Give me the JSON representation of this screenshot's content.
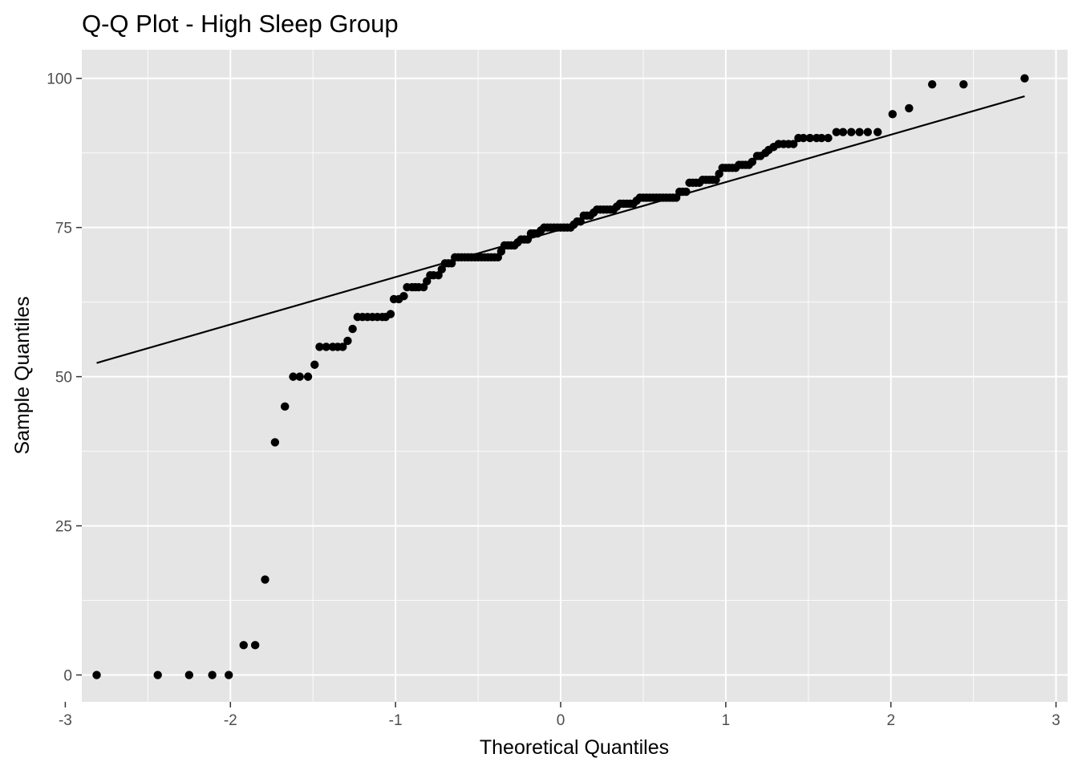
{
  "chart_data": {
    "type": "scatter",
    "title": "Q-Q Plot - High Sleep Group",
    "xlabel": "Theoretical Quantiles",
    "ylabel": "Sample Quantiles",
    "xlim": [
      -2.9,
      3.07
    ],
    "ylim": [
      -4.5,
      104.8
    ],
    "x_ticks": [
      -3,
      -2,
      -1,
      0,
      1,
      2,
      3
    ],
    "x_tick_labels": [
      "-3",
      "-2",
      "-1",
      "0",
      "1",
      "2",
      "3"
    ],
    "y_ticks": [
      0,
      25,
      50,
      75,
      100
    ],
    "y_tick_labels": [
      "0",
      "25",
      "50",
      "75",
      "100"
    ],
    "grid": true,
    "legend": "none",
    "reference_line": {
      "x": [
        -2.81,
        2.81
      ],
      "y": [
        52.3,
        97.0
      ]
    },
    "points": [
      [
        -2.81,
        0
      ],
      [
        -2.44,
        0
      ],
      [
        -2.25,
        0
      ],
      [
        -2.11,
        0
      ],
      [
        -2.01,
        0
      ],
      [
        -1.92,
        5
      ],
      [
        -1.85,
        5
      ],
      [
        -1.79,
        16
      ],
      [
        -1.73,
        39
      ],
      [
        -1.67,
        45
      ],
      [
        -1.62,
        50
      ],
      [
        -1.58,
        50
      ],
      [
        -1.53,
        50
      ],
      [
        -1.49,
        52
      ],
      [
        -1.46,
        55
      ],
      [
        -1.42,
        55
      ],
      [
        -1.38,
        55
      ],
      [
        -1.35,
        55
      ],
      [
        -1.32,
        55
      ],
      [
        -1.29,
        56
      ],
      [
        -1.26,
        58
      ],
      [
        -1.23,
        60
      ],
      [
        -1.2,
        60
      ],
      [
        -1.17,
        60
      ],
      [
        -1.14,
        60
      ],
      [
        -1.11,
        60
      ],
      [
        -1.08,
        60
      ],
      [
        -1.06,
        60
      ],
      [
        -1.03,
        60.5
      ],
      [
        -1.01,
        63
      ],
      [
        -0.98,
        63
      ],
      [
        -0.95,
        63.5
      ],
      [
        -0.93,
        65
      ],
      [
        -0.9,
        65
      ],
      [
        -0.88,
        65
      ],
      [
        -0.86,
        65
      ],
      [
        -0.83,
        65
      ],
      [
        -0.81,
        66
      ],
      [
        -0.79,
        67
      ],
      [
        -0.77,
        67
      ],
      [
        -0.74,
        67
      ],
      [
        -0.72,
        68
      ],
      [
        -0.7,
        69
      ],
      [
        -0.68,
        69
      ],
      [
        -0.66,
        69
      ],
      [
        -0.64,
        70
      ],
      [
        -0.62,
        70
      ],
      [
        -0.6,
        70
      ],
      [
        -0.58,
        70
      ],
      [
        -0.56,
        70
      ],
      [
        -0.54,
        70
      ],
      [
        -0.52,
        70
      ],
      [
        -0.5,
        70
      ],
      [
        -0.48,
        70
      ],
      [
        -0.46,
        70
      ],
      [
        -0.44,
        70
      ],
      [
        -0.42,
        70
      ],
      [
        -0.4,
        70
      ],
      [
        -0.38,
        70
      ],
      [
        -0.36,
        71
      ],
      [
        -0.34,
        72
      ],
      [
        -0.32,
        72
      ],
      [
        -0.3,
        72
      ],
      [
        -0.28,
        72
      ],
      [
        -0.26,
        72.5
      ],
      [
        -0.24,
        73
      ],
      [
        -0.22,
        73
      ],
      [
        -0.2,
        73
      ],
      [
        -0.18,
        74
      ],
      [
        -0.16,
        74
      ],
      [
        -0.14,
        74
      ],
      [
        -0.12,
        74.5
      ],
      [
        -0.1,
        75
      ],
      [
        -0.08,
        75
      ],
      [
        -0.06,
        75
      ],
      [
        -0.04,
        75
      ],
      [
        -0.02,
        75
      ],
      [
        0.0,
        75
      ],
      [
        0.02,
        75
      ],
      [
        0.04,
        75
      ],
      [
        0.06,
        75
      ],
      [
        0.08,
        75.5
      ],
      [
        0.1,
        76
      ],
      [
        0.12,
        76
      ],
      [
        0.14,
        77
      ],
      [
        0.16,
        77
      ],
      [
        0.18,
        77
      ],
      [
        0.2,
        77.5
      ],
      [
        0.22,
        78
      ],
      [
        0.24,
        78
      ],
      [
        0.26,
        78
      ],
      [
        0.28,
        78
      ],
      [
        0.3,
        78
      ],
      [
        0.32,
        78
      ],
      [
        0.34,
        78.5
      ],
      [
        0.36,
        79
      ],
      [
        0.38,
        79
      ],
      [
        0.4,
        79
      ],
      [
        0.42,
        79
      ],
      [
        0.44,
        79
      ],
      [
        0.46,
        79.5
      ],
      [
        0.48,
        80
      ],
      [
        0.5,
        80
      ],
      [
        0.52,
        80
      ],
      [
        0.54,
        80
      ],
      [
        0.56,
        80
      ],
      [
        0.58,
        80
      ],
      [
        0.6,
        80
      ],
      [
        0.62,
        80
      ],
      [
        0.64,
        80
      ],
      [
        0.66,
        80
      ],
      [
        0.68,
        80
      ],
      [
        0.7,
        80
      ],
      [
        0.72,
        81
      ],
      [
        0.74,
        81
      ],
      [
        0.76,
        81
      ],
      [
        0.78,
        82.5
      ],
      [
        0.8,
        82.5
      ],
      [
        0.82,
        82.5
      ],
      [
        0.84,
        82.5
      ],
      [
        0.86,
        83
      ],
      [
        0.88,
        83
      ],
      [
        0.9,
        83
      ],
      [
        0.92,
        83
      ],
      [
        0.94,
        83
      ],
      [
        0.96,
        84
      ],
      [
        0.98,
        85
      ],
      [
        1.0,
        85
      ],
      [
        1.02,
        85
      ],
      [
        1.04,
        85
      ],
      [
        1.06,
        85
      ],
      [
        1.08,
        85.5
      ],
      [
        1.1,
        85.5
      ],
      [
        1.12,
        85.5
      ],
      [
        1.14,
        85.5
      ],
      [
        1.16,
        86
      ],
      [
        1.19,
        87
      ],
      [
        1.21,
        87
      ],
      [
        1.24,
        87.5
      ],
      [
        1.26,
        88
      ],
      [
        1.29,
        88.5
      ],
      [
        1.32,
        89
      ],
      [
        1.35,
        89
      ],
      [
        1.38,
        89
      ],
      [
        1.41,
        89
      ],
      [
        1.44,
        90
      ],
      [
        1.47,
        90
      ],
      [
        1.51,
        90
      ],
      [
        1.55,
        90
      ],
      [
        1.58,
        90
      ],
      [
        1.62,
        90
      ],
      [
        1.67,
        91
      ],
      [
        1.71,
        91
      ],
      [
        1.76,
        91
      ],
      [
        1.81,
        91
      ],
      [
        1.86,
        91
      ],
      [
        1.92,
        91
      ],
      [
        2.01,
        94
      ],
      [
        2.11,
        95
      ],
      [
        2.25,
        99
      ],
      [
        2.44,
        99
      ],
      [
        2.81,
        100
      ]
    ]
  }
}
